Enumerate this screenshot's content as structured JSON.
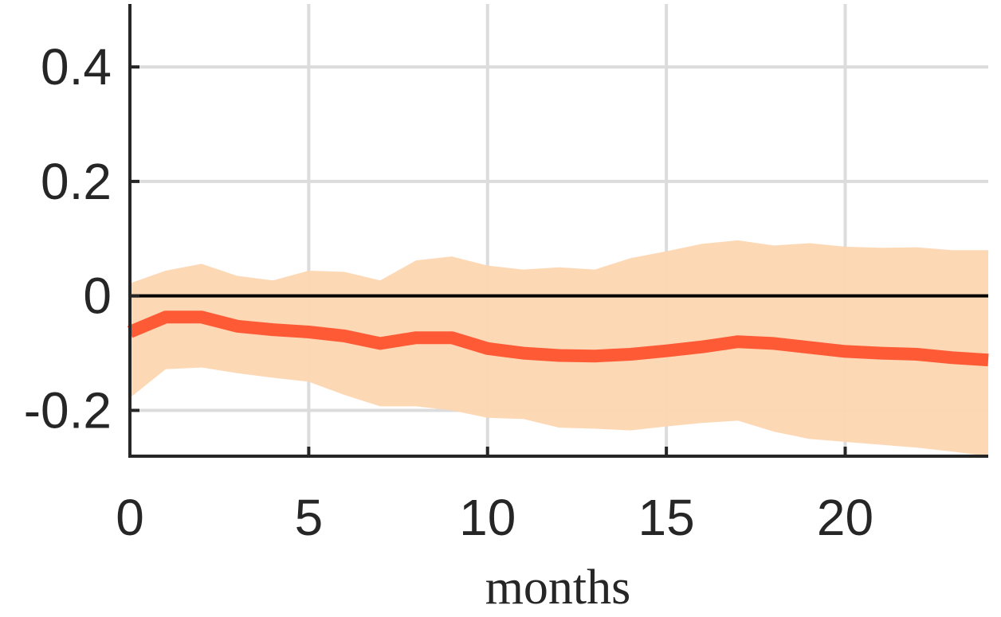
{
  "chart_data": {
    "type": "line",
    "title": "",
    "xlabel": "months",
    "ylabel": "",
    "xlim": [
      0,
      24
    ],
    "ylim": [
      -0.28,
      0.51
    ],
    "xticks": [
      0,
      5,
      10,
      15,
      20
    ],
    "xtick_labels": [
      "0",
      "5",
      "10",
      "15",
      "20"
    ],
    "yticks": [
      -0.2,
      0,
      0.2,
      0.4
    ],
    "ytick_labels": [
      "-0.2",
      "0",
      "0.2",
      "0.4"
    ],
    "grid": true,
    "reference_line_y": 0,
    "colors": {
      "line": "#ff5a36",
      "band": "#fdd6b1",
      "axis": "#262626",
      "grid": "#dcdcdc",
      "zero": "#000000"
    },
    "series": [
      {
        "x": [
          0,
          1,
          2,
          3,
          4,
          5,
          6,
          7,
          8,
          9,
          10,
          11,
          12,
          13,
          14,
          15,
          16,
          17,
          18,
          19,
          20,
          21,
          22,
          23,
          24
        ],
        "values": [
          -0.063,
          -0.037,
          -0.037,
          -0.053,
          -0.059,
          -0.063,
          -0.07,
          -0.083,
          -0.073,
          -0.073,
          -0.092,
          -0.1,
          -0.104,
          -0.105,
          -0.102,
          -0.096,
          -0.089,
          -0.08,
          -0.083,
          -0.09,
          -0.097,
          -0.1,
          -0.102,
          -0.108,
          -0.112
        ],
        "lower": [
          -0.178,
          -0.128,
          -0.125,
          -0.135,
          -0.143,
          -0.15,
          -0.173,
          -0.193,
          -0.193,
          -0.2,
          -0.213,
          -0.215,
          -0.23,
          -0.232,
          -0.235,
          -0.228,
          -0.222,
          -0.218,
          -0.237,
          -0.25,
          -0.255,
          -0.26,
          -0.265,
          -0.272,
          -0.28
        ],
        "upper": [
          0.022,
          0.044,
          0.056,
          0.035,
          0.027,
          0.044,
          0.042,
          0.027,
          0.062,
          0.069,
          0.053,
          0.046,
          0.05,
          0.046,
          0.066,
          0.078,
          0.091,
          0.097,
          0.088,
          0.092,
          0.086,
          0.084,
          0.085,
          0.08,
          0.08
        ]
      }
    ]
  }
}
